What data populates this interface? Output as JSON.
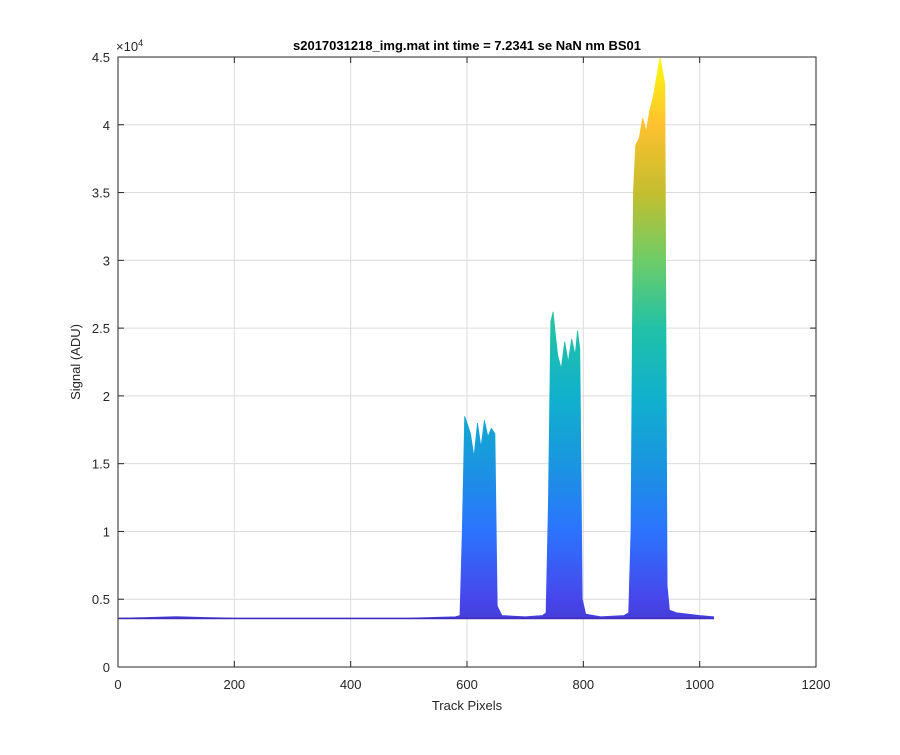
{
  "chart_data": {
    "type": "area",
    "title": "s2017031218_img.mat int time = 7.2341 se  NaN nm BS01",
    "xlabel": "Track Pixels",
    "ylabel": "Signal (ADU)",
    "y_exponent_label": "×10",
    "y_exponent_power": "4",
    "xlim": [
      0,
      1200
    ],
    "ylim": [
      0,
      4.5
    ],
    "y_scale_factor": 10000,
    "x_ticks": [
      0,
      200,
      400,
      600,
      800,
      1000,
      1200
    ],
    "y_ticks": [
      0,
      0.5,
      1,
      1.5,
      2,
      2.5,
      3,
      3.5,
      4,
      4.5
    ],
    "x_tick_labels": [
      "0",
      "200",
      "400",
      "600",
      "800",
      "1000",
      "1200"
    ],
    "y_tick_labels": [
      "0",
      "0.5",
      "1",
      "1.5",
      "2",
      "2.5",
      "3",
      "3.5",
      "4",
      "4.5"
    ],
    "grid": true,
    "colormap": [
      "#3e26a8",
      "#4746eb",
      "#2c73fe",
      "#1a96e0",
      "#10b1cc",
      "#21c1a7",
      "#6ecc67",
      "#c4be2e",
      "#fec02f",
      "#f9fb0e"
    ],
    "series": [
      {
        "x": [
          0,
          50,
          100,
          150,
          200,
          300,
          400,
          500,
          580,
          588,
          592,
          596,
          600,
          606,
          612,
          618,
          624,
          630,
          636,
          642,
          648,
          652,
          660,
          700,
          730,
          736,
          740,
          744,
          748,
          752,
          756,
          762,
          768,
          774,
          780,
          786,
          790,
          794,
          798,
          804,
          830,
          870,
          878,
          882,
          886,
          890,
          896,
          902,
          908,
          914,
          920,
          926,
          932,
          936,
          940,
          944,
          948,
          960,
          1000,
          1024
        ],
        "y": [
          0.36,
          0.365,
          0.372,
          0.365,
          0.36,
          0.36,
          0.36,
          0.36,
          0.37,
          0.38,
          1.0,
          1.85,
          1.8,
          1.72,
          1.55,
          1.8,
          1.62,
          1.82,
          1.7,
          1.76,
          1.72,
          0.45,
          0.38,
          0.37,
          0.38,
          0.4,
          1.2,
          2.55,
          2.62,
          2.45,
          2.3,
          2.2,
          2.4,
          2.25,
          2.42,
          2.3,
          2.48,
          2.35,
          0.5,
          0.39,
          0.37,
          0.38,
          0.4,
          1.0,
          3.5,
          3.85,
          3.9,
          4.05,
          3.95,
          4.1,
          4.2,
          4.35,
          4.5,
          4.4,
          4.3,
          0.6,
          0.42,
          0.4,
          0.38,
          0.37
        ]
      }
    ]
  }
}
